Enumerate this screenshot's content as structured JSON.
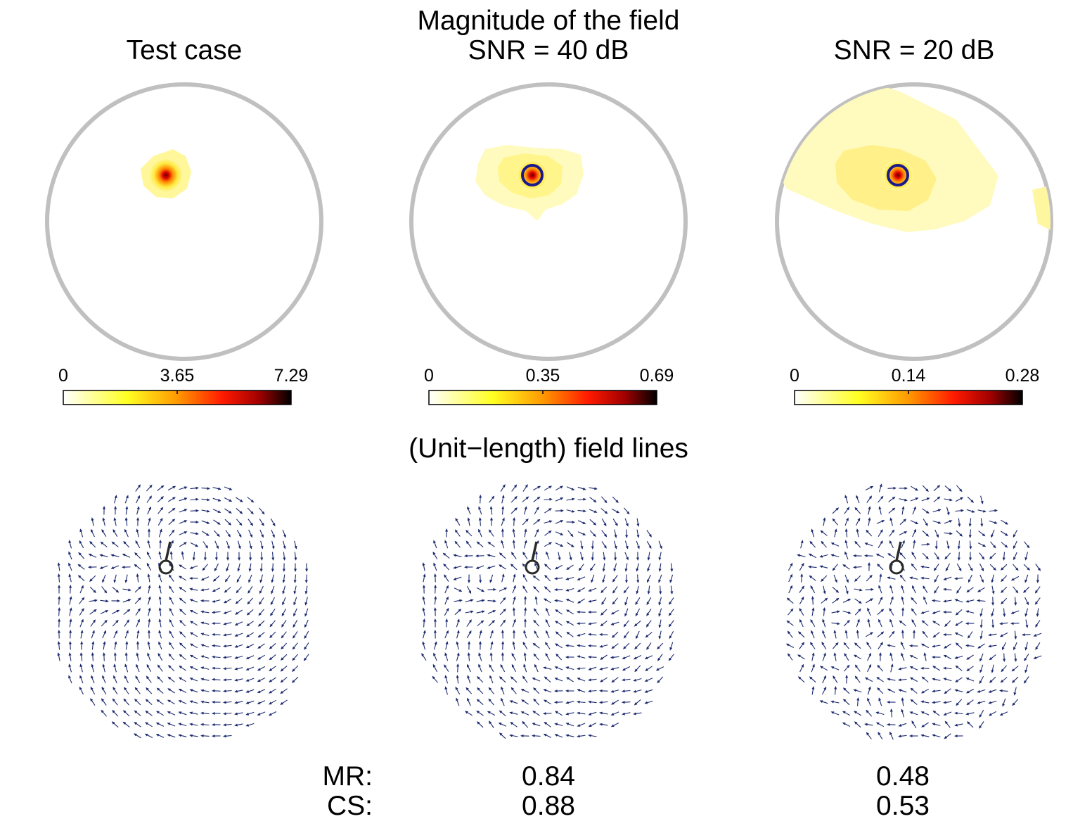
{
  "titles": {
    "top": "Magnitude of the field",
    "bottom": "(Unit−length) field lines"
  },
  "panels": [
    {
      "title": "Test case",
      "cbar": {
        "min": "0",
        "mid": "3.65",
        "max": "7.29"
      }
    },
    {
      "title": "SNR = 40 dB",
      "cbar": {
        "min": "0",
        "mid": "0.35",
        "max": "0.69"
      }
    },
    {
      "title": "SNR = 20 dB",
      "cbar": {
        "min": "0",
        "mid": "0.14",
        "max": "0.28"
      }
    }
  ],
  "metrics": {
    "mr_label": "MR:",
    "cs_label": "CS:",
    "snr40": {
      "mr": "0.84",
      "cs": "0.88"
    },
    "snr20": {
      "mr": "0.48",
      "cs": "0.53"
    }
  },
  "chart_data": {
    "type": "heatmap",
    "description_free": true,
    "colormap": "hot (white-yellow-red-black)",
    "panels": [
      {
        "title": "Test case",
        "clim": [
          0,
          7.29
        ],
        "ticks": [
          0,
          3.65,
          7.29
        ],
        "peak_value": 7.29,
        "estimated_source": false
      },
      {
        "title": "SNR = 40 dB",
        "clim": [
          0,
          0.69
        ],
        "ticks": [
          0,
          0.35,
          0.69
        ],
        "peak_value": 0.69,
        "estimated_source": true
      },
      {
        "title": "SNR = 20 dB",
        "clim": [
          0,
          0.28
        ],
        "ticks": [
          0,
          0.14,
          0.28
        ],
        "peak_value": 0.28,
        "estimated_source": true
      }
    ],
    "scores": [
      {
        "case": "SNR = 40 dB",
        "MR": 0.84,
        "CS": 0.88
      },
      {
        "case": "SNR = 20 dB",
        "MR": 0.48,
        "CS": 0.53
      }
    ],
    "colors": {
      "head_outline": "#c0c0c0",
      "arrow": "#1c2a6e",
      "source_marker": "#1a1a8c",
      "dipole_marker": "#2a2a2a"
    }
  }
}
